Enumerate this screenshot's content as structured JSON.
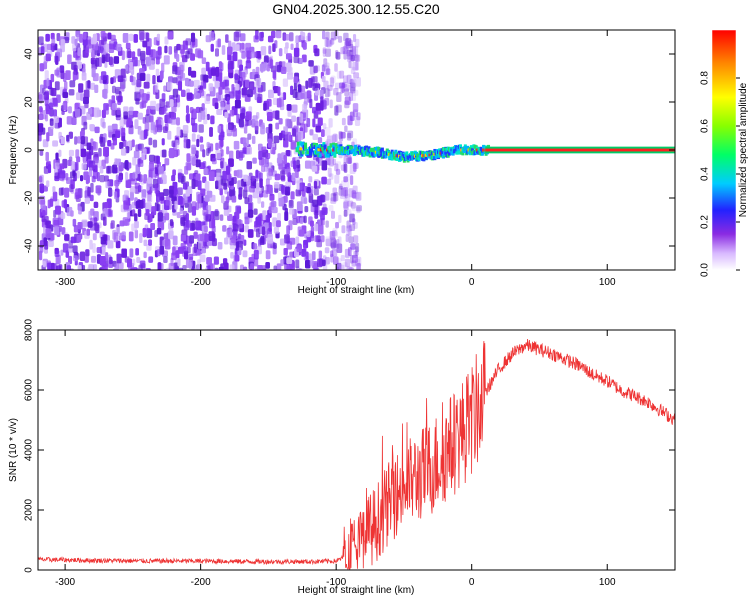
{
  "title": "GN04.2025.300.12.55.C20",
  "chart_data": [
    {
      "type": "heatmap",
      "xlabel": "Height of straight line (km)",
      "ylabel": "Frequency (Hz)",
      "xlim": [
        -320,
        150
      ],
      "ylim": [
        -50,
        50
      ],
      "xticks": [
        -300,
        -200,
        -100,
        0,
        100
      ],
      "yticks": [
        -40,
        -20,
        0,
        20,
        40
      ],
      "colorbar": {
        "label": "Normalized spectral amplitude",
        "range": [
          0,
          1
        ],
        "ticks": [
          "0.0",
          "0.2",
          "0.4",
          "0.6",
          "0.8"
        ]
      },
      "ridge": [
        {
          "x": -130,
          "y": 0.5
        },
        {
          "x": -110,
          "y": 0
        },
        {
          "x": -90,
          "y": 0
        },
        {
          "x": -70,
          "y": -1
        },
        {
          "x": -50,
          "y": -3
        },
        {
          "x": -30,
          "y": -2
        },
        {
          "x": -10,
          "y": 0
        },
        {
          "x": 10,
          "y": 0
        },
        {
          "x": 60,
          "y": 0
        },
        {
          "x": 100,
          "y": 0
        },
        {
          "x": 150,
          "y": 0
        }
      ],
      "description_of_regions": {
        "noise_region_xmax": -95,
        "strong_carrier_xmin": 10
      }
    },
    {
      "type": "line",
      "xlabel": "Height of straight line (km)",
      "ylabel": "SNR (10 * v/v)",
      "xlim": [
        -320,
        150
      ],
      "ylim": [
        0,
        8000
      ],
      "xticks": [
        -300,
        -200,
        -100,
        0,
        100
      ],
      "yticks": [
        0,
        2000,
        4000,
        6000,
        8000
      ],
      "series": [
        {
          "color": "#ee3333",
          "x": [
            -320,
            -280,
            -240,
            -200,
            -160,
            -120,
            -100,
            -90,
            -80,
            -70,
            -60,
            -50,
            -40,
            -30,
            -20,
            -10,
            0,
            10,
            20,
            30,
            40,
            50,
            60,
            70,
            80,
            90,
            100,
            110,
            120,
            130,
            140,
            150
          ],
          "y": [
            350,
            320,
            300,
            300,
            280,
            280,
            300,
            500,
            1000,
            1600,
            2300,
            2800,
            3100,
            3400,
            3900,
            4400,
            5000,
            5900,
            6700,
            7200,
            7500,
            7350,
            7200,
            7000,
            6800,
            6500,
            6300,
            6000,
            5800,
            5600,
            5300,
            5000
          ]
        }
      ]
    }
  ]
}
